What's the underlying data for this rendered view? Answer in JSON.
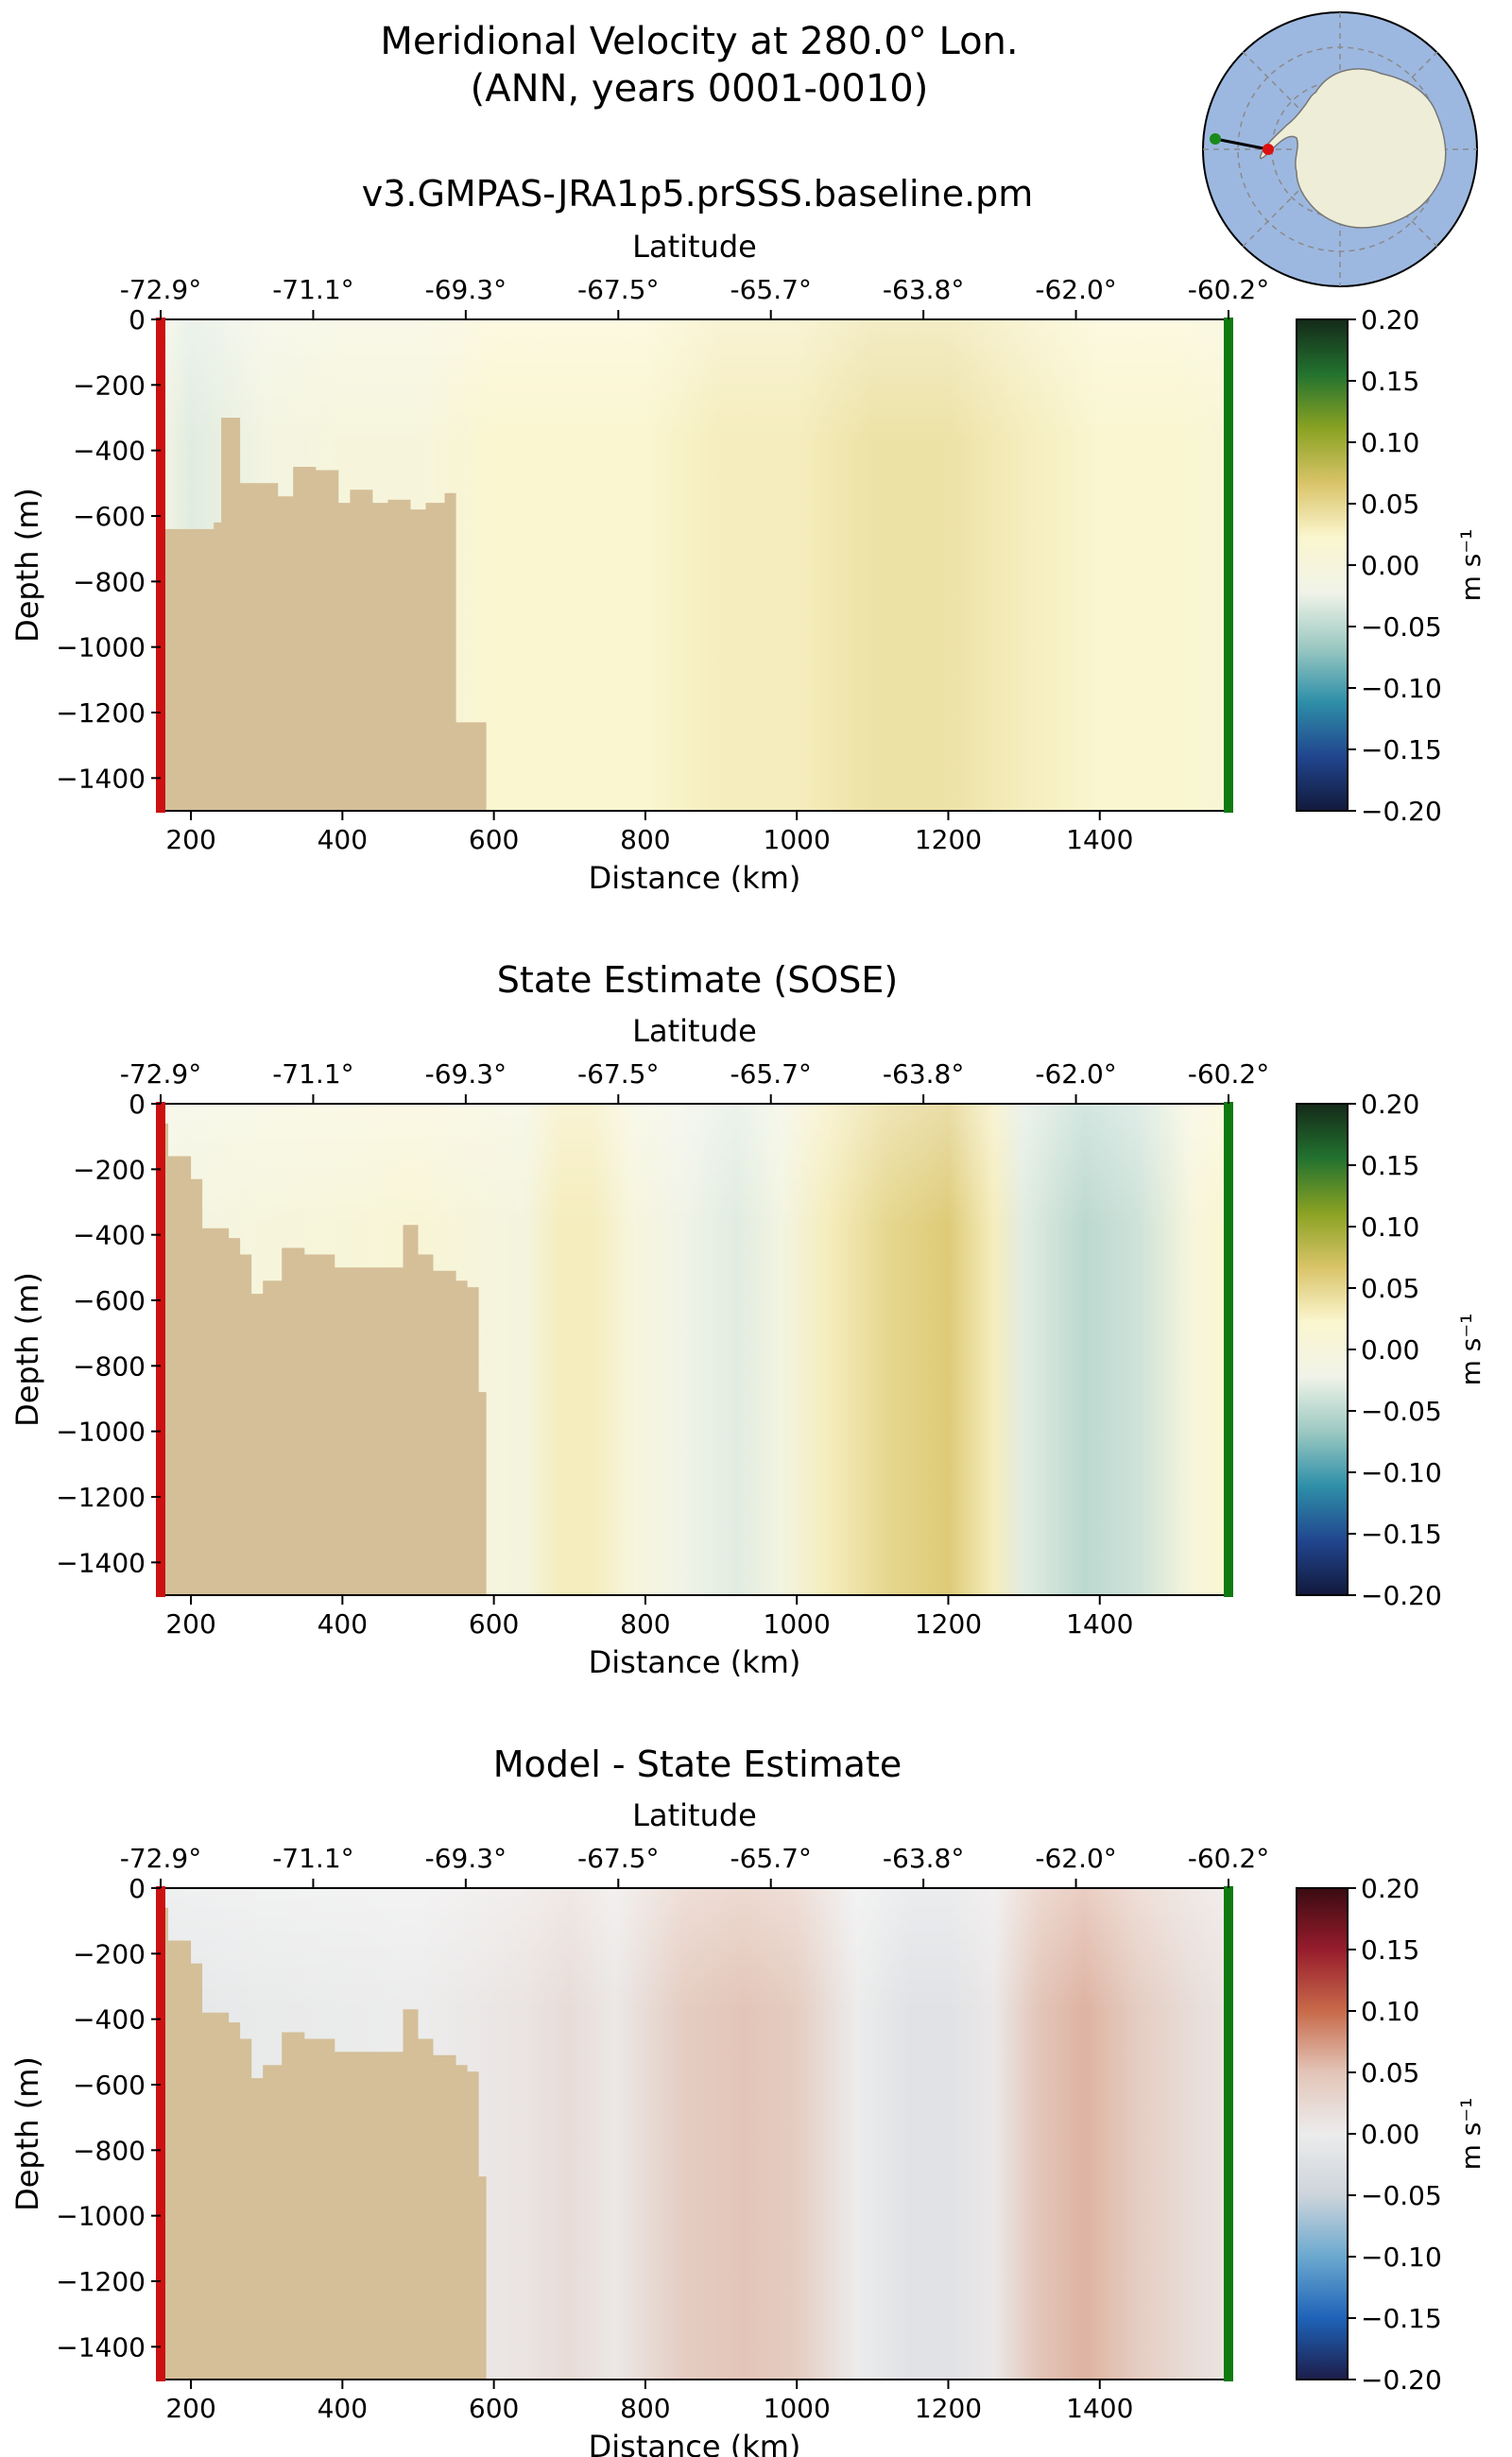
{
  "figure": {
    "title_line1": "Meridional Velocity at 280.0° Lon.",
    "title_line2": "(ANN, years 0001-0010)"
  },
  "colors": {
    "land": "#d4bf98",
    "ocean": "#9db8e0",
    "continent": "#eeeed8",
    "start_marker": "#cc1111",
    "end_marker": "#0f7a0f",
    "axis": "#000000",
    "balance_stops": [
      "#1d1d4a",
      "#1f63b8",
      "#6ba9cf",
      "#cdd4db",
      "#ececec",
      "#e3c5b8",
      "#c86a4a",
      "#971c2c",
      "#3a0b12"
    ],
    "delta_stops": [
      "#12193b",
      "#21468f",
      "#2e8fa8",
      "#9cc9c2",
      "#f0f3e8",
      "#fbf6cf",
      "#d9c469",
      "#8aa223",
      "#23722f",
      "#142a19"
    ]
  },
  "chart_data": [
    {
      "type": "heatmap",
      "title": "v3.GMPAS-JRA1p5.prSSS.baseline.pm",
      "xlabel": "Distance (km)",
      "ylabel": "Depth (m)",
      "top_xlabel": "Latitude",
      "x_ticks": [
        200,
        400,
        600,
        800,
        1000,
        1200,
        1400
      ],
      "y_ticks": [
        0,
        -200,
        -400,
        -600,
        -800,
        -1000,
        -1200,
        -1400
      ],
      "latitude_ticks": [
        "-72.9°",
        "-71.1°",
        "-69.3°",
        "-67.5°",
        "-65.7°",
        "-63.8°",
        "-62.0°",
        "-60.2°"
      ],
      "xlim": [
        160,
        1570
      ],
      "ylim": [
        -1500,
        0
      ],
      "colorbar": {
        "label": "m s⁻¹",
        "ticks": [
          "0.20",
          "0.15",
          "0.10",
          "0.05",
          "0.00",
          "−0.05",
          "−0.10",
          "−0.15",
          "−0.20"
        ],
        "range": [
          -0.2,
          0.2
        ],
        "colormap": "delta"
      },
      "velocity_profile": {
        "distance_km": [
          160,
          200,
          300,
          400,
          500,
          550,
          600,
          700,
          800,
          900,
          1000,
          1100,
          1200,
          1300,
          1400,
          1500,
          1570
        ],
        "v_m_s": [
          -0.01,
          -0.03,
          -0.01,
          0.0,
          0.0,
          0.01,
          0.02,
          0.02,
          0.02,
          0.03,
          0.03,
          0.04,
          0.04,
          0.03,
          0.02,
          0.02,
          0.01
        ]
      },
      "bathymetry": {
        "distance_km": [
          160,
          230,
          240,
          265,
          315,
          335,
          365,
          395,
          410,
          440,
          460,
          490,
          510,
          535,
          550,
          580,
          590
        ],
        "depth_m": [
          -640,
          -620,
          -300,
          -500,
          -540,
          -450,
          -460,
          -560,
          -520,
          -560,
          -550,
          -580,
          -560,
          -530,
          -1230,
          -1230,
          -1500
        ]
      }
    },
    {
      "type": "heatmap",
      "title": "State Estimate (SOSE)",
      "xlabel": "Distance (km)",
      "ylabel": "Depth (m)",
      "top_xlabel": "Latitude",
      "x_ticks": [
        200,
        400,
        600,
        800,
        1000,
        1200,
        1400
      ],
      "y_ticks": [
        0,
        -200,
        -400,
        -600,
        -800,
        -1000,
        -1200,
        -1400
      ],
      "latitude_ticks": [
        "-72.9°",
        "-71.1°",
        "-69.3°",
        "-67.5°",
        "-65.7°",
        "-63.8°",
        "-62.0°",
        "-60.2°"
      ],
      "xlim": [
        160,
        1570
      ],
      "ylim": [
        -1500,
        0
      ],
      "colorbar": {
        "label": "m s⁻¹",
        "ticks": [
          "0.20",
          "0.15",
          "0.10",
          "0.05",
          "0.00",
          "−0.05",
          "−0.10",
          "−0.15",
          "−0.20"
        ],
        "range": [
          -0.2,
          0.2
        ],
        "colormap": "delta"
      },
      "velocity_profile": {
        "distance_km": [
          160,
          300,
          500,
          640,
          690,
          730,
          780,
          850,
          920,
          980,
          1040,
          1120,
          1200,
          1260,
          1300,
          1380,
          1450,
          1520,
          1570
        ],
        "v_m_s": [
          -0.01,
          0.0,
          0.01,
          -0.005,
          0.03,
          0.03,
          0.0,
          -0.02,
          -0.03,
          -0.01,
          0.03,
          0.05,
          0.06,
          0.03,
          -0.03,
          -0.05,
          -0.04,
          0.0,
          0.02
        ]
      },
      "bathymetry": {
        "distance_km": [
          160,
          170,
          200,
          215,
          250,
          265,
          280,
          295,
          320,
          350,
          390,
          440,
          480,
          500,
          520,
          550,
          565,
          580,
          590
        ],
        "depth_m": [
          -60,
          -160,
          -230,
          -380,
          -410,
          -460,
          -580,
          -540,
          -440,
          -460,
          -500,
          -500,
          -370,
          -460,
          -510,
          -540,
          -560,
          -880,
          -1500
        ]
      }
    },
    {
      "type": "heatmap",
      "title": "Model - State Estimate",
      "xlabel": "Distance (km)",
      "ylabel": "Depth (m)",
      "top_xlabel": "Latitude",
      "x_ticks": [
        200,
        400,
        600,
        800,
        1000,
        1200,
        1400
      ],
      "y_ticks": [
        0,
        -200,
        -400,
        -600,
        -800,
        -1000,
        -1200,
        -1400
      ],
      "latitude_ticks": [
        "-72.9°",
        "-71.1°",
        "-69.3°",
        "-67.5°",
        "-65.7°",
        "-63.8°",
        "-62.0°",
        "-60.2°"
      ],
      "xlim": [
        160,
        1570
      ],
      "ylim": [
        -1500,
        0
      ],
      "colorbar": {
        "label": "m s⁻¹",
        "ticks": [
          "0.20",
          "0.15",
          "0.10",
          "0.05",
          "0.00",
          "−0.05",
          "−0.10",
          "−0.15",
          "−0.20"
        ],
        "range": [
          -0.2,
          0.2
        ],
        "colormap": "balance"
      },
      "velocity_profile": {
        "distance_km": [
          160,
          300,
          500,
          640,
          700,
          760,
          850,
          930,
          1000,
          1080,
          1150,
          1200,
          1260,
          1320,
          1380,
          1450,
          1520,
          1570
        ],
        "v_m_s": [
          -0.01,
          -0.005,
          0.0,
          0.01,
          0.02,
          0.005,
          0.04,
          0.05,
          0.04,
          0.0,
          -0.02,
          -0.02,
          0.005,
          0.05,
          0.06,
          0.04,
          0.02,
          0.01
        ]
      },
      "bathymetry": {
        "distance_km": [
          160,
          170,
          200,
          215,
          250,
          265,
          280,
          295,
          320,
          350,
          390,
          440,
          480,
          500,
          520,
          550,
          565,
          580,
          590
        ],
        "depth_m": [
          -60,
          -160,
          -230,
          -380,
          -410,
          -460,
          -580,
          -540,
          -440,
          -460,
          -500,
          -500,
          -370,
          -460,
          -510,
          -540,
          -560,
          -880,
          -1500
        ]
      }
    }
  ]
}
